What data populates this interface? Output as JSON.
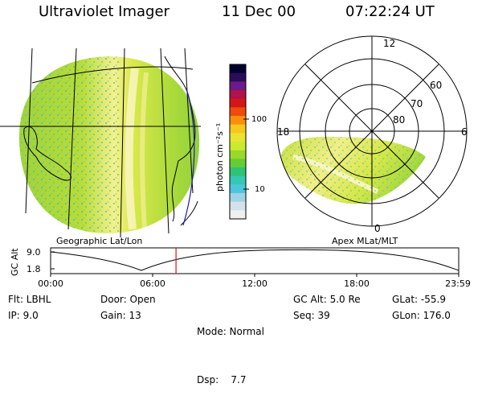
{
  "header": {
    "instrument": "Ultraviolet Imager",
    "date": "11 Dec 00",
    "time": "07:22:24 UT"
  },
  "left_map": {
    "caption": "Geographic Lat/Lon"
  },
  "colorbar": {
    "label": "photon cm⁻²s⁻¹",
    "ticks": [
      "100",
      "10"
    ],
    "colors": [
      "#000030",
      "#2a0c5a",
      "#6a1a8a",
      "#b0124a",
      "#d51616",
      "#ee4b0c",
      "#f88f0b",
      "#f6c71c",
      "#e9e332",
      "#cbea2d",
      "#9ad82a",
      "#63cd35",
      "#2fc279",
      "#33c9b3",
      "#4cc6dd",
      "#9fd2e6",
      "#d3e2ea",
      "#f0f0f0"
    ]
  },
  "polar": {
    "caption": "Apex MLat/MLT",
    "mlt_labels": {
      "top": "12",
      "right": "6",
      "bottom": "0",
      "left": "18"
    },
    "lat_labels": [
      "60",
      "70",
      "80"
    ]
  },
  "altitude_plot": {
    "ylabel": "GC Alt",
    "yticks": [
      "9.0",
      "1.8"
    ],
    "xticks": [
      "00:00",
      "06:00",
      "12:00",
      "18:00",
      "23:59"
    ],
    "current_time_fraction": 0.3072
  },
  "status": {
    "col1": [
      "Flt: LBHL",
      "IP:  9.0"
    ],
    "col2": [
      "Door: Open",
      "Gain: 13"
    ],
    "col3": [
      "Mode: Normal",
      "Dsp:    7.7"
    ],
    "col4": [
      "GC Alt: 5.0 Re",
      "Seq: 39"
    ],
    "col5": [
      "GLat: -55.9",
      "GLon: 176.0"
    ]
  }
}
